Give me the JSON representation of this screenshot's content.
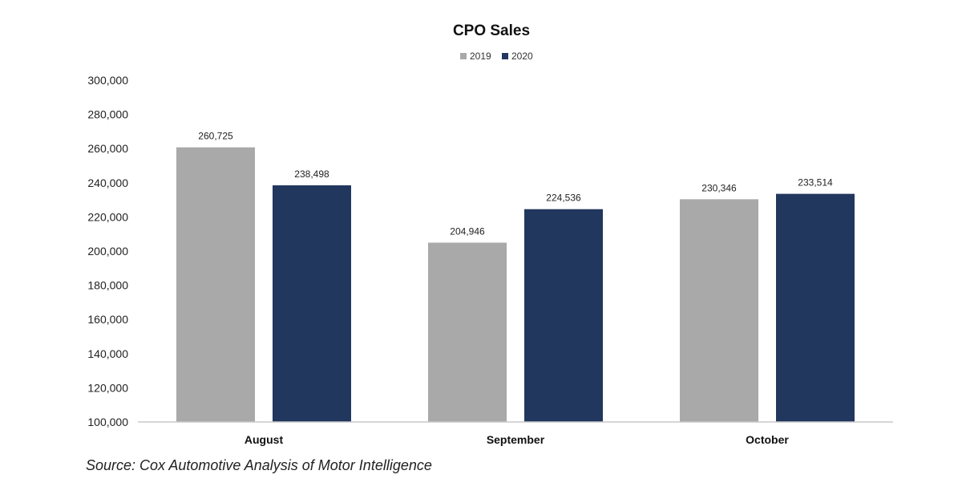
{
  "chart_data": {
    "type": "bar",
    "title": "CPO Sales",
    "categories": [
      "August",
      "September",
      "October"
    ],
    "series": [
      {
        "name": "2019",
        "color": "#a9a9a9",
        "values": [
          260725,
          204946,
          230346
        ],
        "labels": [
          "260,725",
          "204,946",
          "230,346"
        ]
      },
      {
        "name": "2020",
        "color": "#22375e",
        "values": [
          238498,
          224536,
          233514
        ],
        "labels": [
          "238,498",
          "224,536",
          "233,514"
        ]
      }
    ],
    "ylim": [
      100000,
      300000
    ],
    "yticks": [
      "100,000",
      "120,000",
      "140,000",
      "160,000",
      "180,000",
      "200,000",
      "220,000",
      "240,000",
      "260,000",
      "280,000",
      "300,000"
    ],
    "xlabel": "",
    "ylabel": "",
    "grid": false,
    "legend_position": "top-center"
  },
  "source": "Source: Cox Automotive Analysis of Motor Intelligence"
}
